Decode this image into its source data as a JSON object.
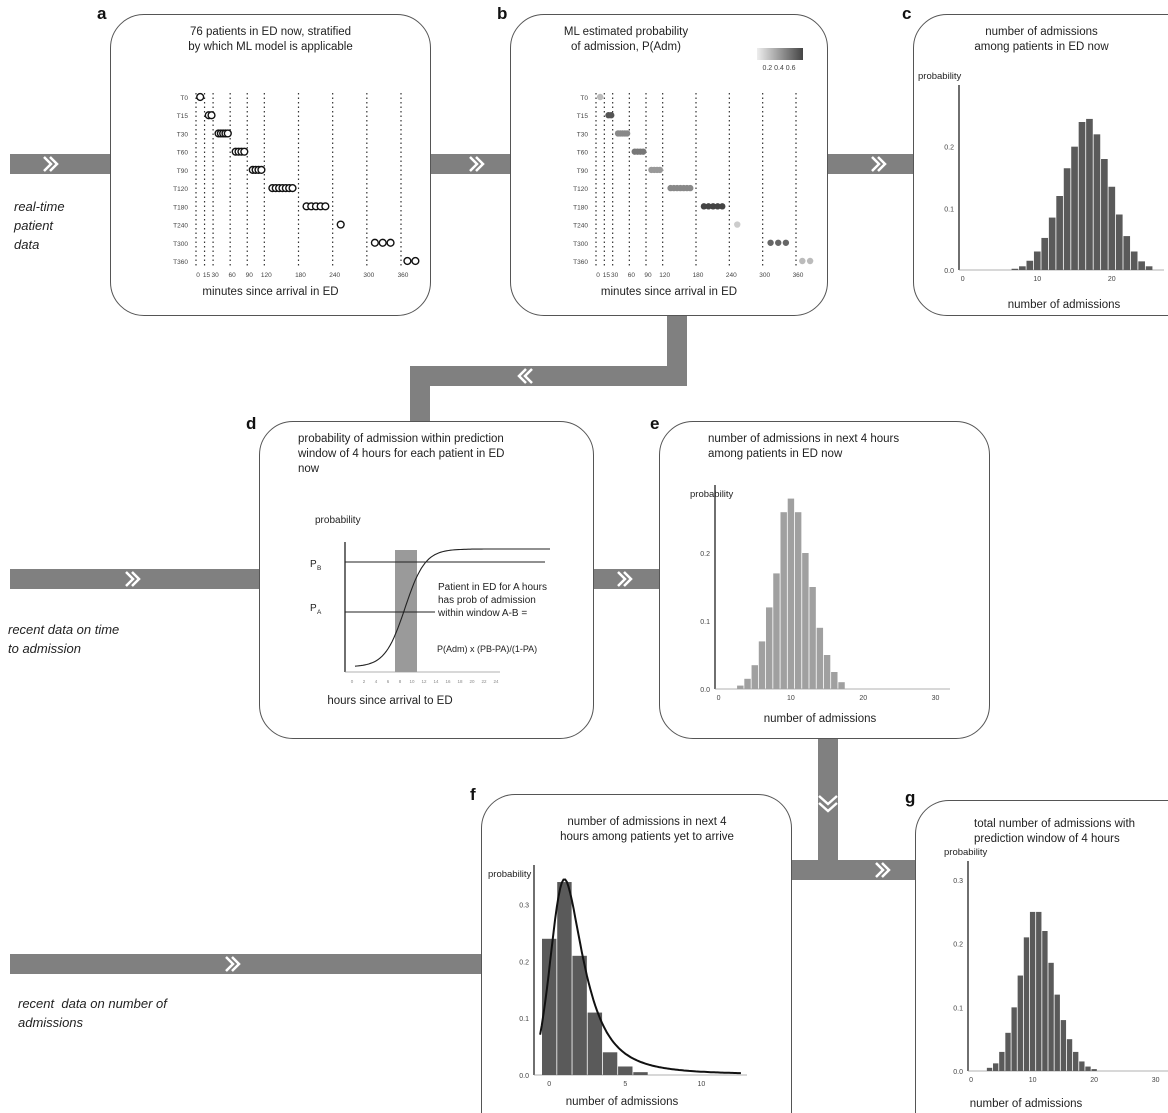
{
  "inputs": {
    "realtime": "real-time\npatient\ndata",
    "time_to_admission": "recent data on time\nto admission",
    "num_admissions": "recent  data on number of\nadmissions"
  },
  "panels": {
    "a": {
      "label": "a",
      "title": "76 patients in ED now, stratified\nby which ML model is applicable",
      "xlabel": "minutes since arrival in ED",
      "rows": [
        "T0",
        "T15",
        "T30",
        "T60",
        "T90",
        "T120",
        "T180",
        "T240",
        "T300",
        "T360"
      ],
      "ticks": [
        "0",
        "15",
        "30",
        "60",
        "90",
        "120",
        "180",
        "240",
        "300",
        "360"
      ]
    },
    "b": {
      "label": "b",
      "title": "ML estimated probability\nof admission, P(Adm)",
      "legend_ticks": "0.2 0.4 0.6",
      "xlabel": "minutes since arrival in ED",
      "rows": [
        "T0",
        "T15",
        "T30",
        "T60",
        "T90",
        "T120",
        "T180",
        "T240",
        "T300",
        "T360"
      ],
      "ticks": [
        "0",
        "15",
        "30",
        "60",
        "90",
        "120",
        "180",
        "240",
        "300",
        "360"
      ]
    },
    "c": {
      "label": "c",
      "title": "number of admissions\namong patients in ED now",
      "ylabel": "probability",
      "xlabel": "number of admissions",
      "yticks": [
        "0.0",
        "0.1",
        "0.2"
      ],
      "xticks": [
        "0",
        "10",
        "20"
      ]
    },
    "d": {
      "label": "d",
      "title": "probability of admission within prediction\nwindow of 4 hours for each patient in ED\nnow",
      "ylabel": "probability",
      "pb": "P",
      "pb_sub": "B",
      "pa": "P",
      "pa_sub": "A",
      "annotation": "Patient in ED for A hours\nhas prob of admission\nwithin window A-B =",
      "formula": "P(Adm)  x  (PB-PA)/(1-PA)",
      "xlabel": "hours since arrival to ED"
    },
    "e": {
      "label": "e",
      "title": "number of admissions in next 4 hours\namong patients in ED now",
      "ylabel": "probability",
      "xlabel": "number of admissions",
      "yticks": [
        "0.0",
        "0.1",
        "0.2"
      ],
      "xticks": [
        "0",
        "10",
        "20",
        "30"
      ]
    },
    "f": {
      "label": "f",
      "title": "number of admissions in next 4\nhours among patients yet to arrive",
      "ylabel": "probability",
      "xlabel": "number of admissions",
      "yticks": [
        "0.0",
        "0.1",
        "0.2",
        "0.3"
      ],
      "xticks": [
        "0",
        "5",
        "10"
      ]
    },
    "g": {
      "label": "g",
      "title": "total number of admissions with\nprediction window of 4 hours",
      "ylabel": "probability",
      "xlabel": "number of admissions",
      "yticks": [
        "0.0",
        "0.1",
        "0.2",
        "0.3"
      ],
      "xticks": [
        "0",
        "10",
        "20",
        "30"
      ]
    }
  },
  "chart_data": [
    {
      "id": "c",
      "type": "bar",
      "x": [
        7,
        8,
        9,
        10,
        11,
        12,
        13,
        14,
        15,
        16,
        17,
        18,
        19,
        20,
        21,
        22,
        23,
        24,
        25
      ],
      "values": [
        0.002,
        0.006,
        0.015,
        0.03,
        0.052,
        0.085,
        0.12,
        0.165,
        0.2,
        0.24,
        0.245,
        0.22,
        0.18,
        0.135,
        0.09,
        0.055,
        0.03,
        0.014,
        0.006
      ]
    },
    {
      "id": "e",
      "type": "bar",
      "x": [
        3,
        4,
        5,
        6,
        7,
        8,
        9,
        10,
        11,
        12,
        13,
        14,
        15,
        16,
        17
      ],
      "values": [
        0.005,
        0.015,
        0.035,
        0.07,
        0.12,
        0.17,
        0.26,
        0.28,
        0.26,
        0.2,
        0.15,
        0.09,
        0.05,
        0.025,
        0.01
      ]
    },
    {
      "id": "f",
      "type": "bar",
      "x": [
        0,
        1,
        2,
        3,
        4,
        5,
        6
      ],
      "values": [
        0.24,
        0.34,
        0.21,
        0.11,
        0.04,
        0.015,
        0.005
      ]
    },
    {
      "id": "g",
      "type": "bar",
      "x": [
        3,
        4,
        5,
        6,
        7,
        8,
        9,
        10,
        11,
        12,
        13,
        14,
        15,
        16,
        17,
        18,
        19,
        20
      ],
      "values": [
        0.005,
        0.012,
        0.03,
        0.06,
        0.1,
        0.15,
        0.21,
        0.25,
        0.25,
        0.22,
        0.17,
        0.12,
        0.08,
        0.05,
        0.03,
        0.015,
        0.007,
        0.003
      ]
    }
  ],
  "colors": {
    "arrow": "#808080",
    "panel_border": "#555555",
    "bar_dark": "#5a5a5a",
    "bar_light": "#a0a0a0"
  }
}
